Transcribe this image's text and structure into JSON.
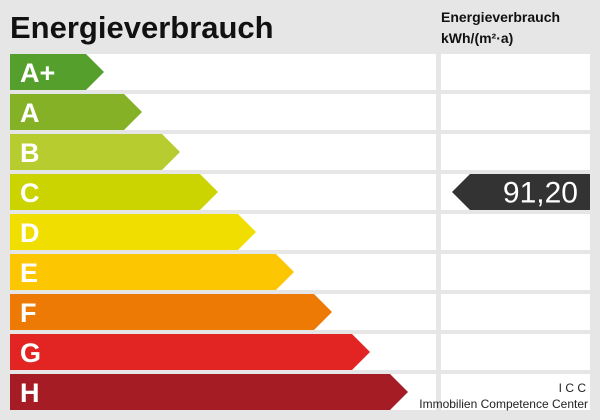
{
  "title": "Energieverbrauch",
  "column_header": {
    "line1": "Energieverbrauch",
    "line2": "kWh/(m²·a)"
  },
  "rows": [
    {
      "label": "A+",
      "color": "#55a02c"
    },
    {
      "label": "A",
      "color": "#85b126"
    },
    {
      "label": "B",
      "color": "#b7cd2f"
    },
    {
      "label": "C",
      "color": "#cbd400"
    },
    {
      "label": "D",
      "color": "#f0de00"
    },
    {
      "label": "E",
      "color": "#fcc600"
    },
    {
      "label": "F",
      "color": "#ec7a05"
    },
    {
      "label": "G",
      "color": "#e22522"
    },
    {
      "label": "H",
      "color": "#a51c24"
    }
  ],
  "indicator": {
    "row_label": "C",
    "value": "91,20",
    "color": "#333333"
  },
  "footer": {
    "line1": "I C C",
    "line2": "Immobilien Competence Center"
  }
}
